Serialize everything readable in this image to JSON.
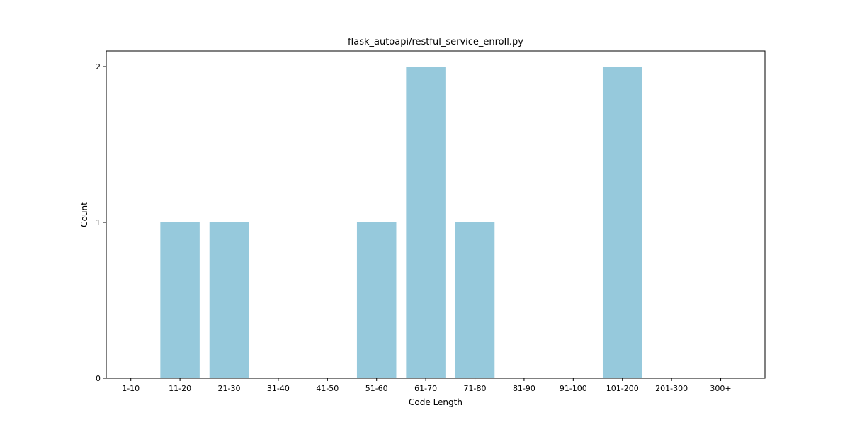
{
  "chart_data": {
    "type": "bar",
    "title": "flask_autoapi/restful_service_enroll.py",
    "xlabel": "Code Length",
    "ylabel": "Count",
    "categories": [
      "1-10",
      "11-20",
      "21-30",
      "31-40",
      "41-50",
      "51-60",
      "61-70",
      "71-80",
      "81-90",
      "91-100",
      "101-200",
      "201-300",
      "300+"
    ],
    "values": [
      0,
      1,
      1,
      0,
      0,
      1,
      2,
      1,
      0,
      0,
      2,
      0,
      0
    ],
    "yticks": [
      0,
      1,
      2
    ],
    "ylim": [
      0,
      2.1
    ],
    "grid": false,
    "legend": "none",
    "bar_color": "#96c9dc"
  }
}
